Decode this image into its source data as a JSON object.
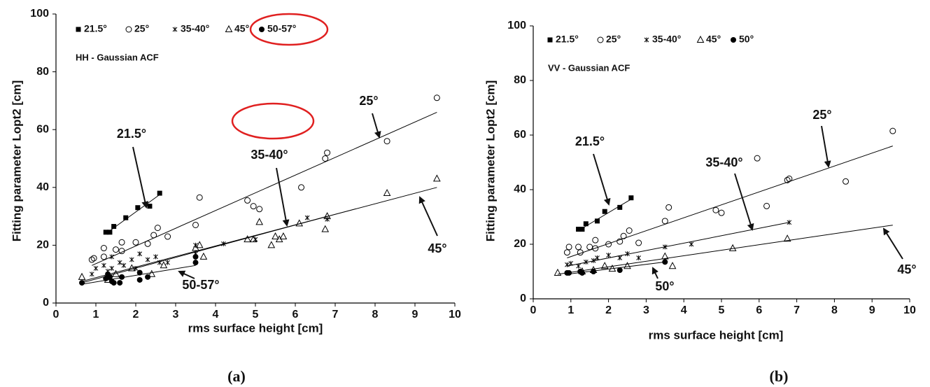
{
  "chart_data": [
    {
      "type": "scatter",
      "caption": "(a)",
      "annotation": "HH - Gaussian ACF",
      "xlabel": "rms surface height [cm]",
      "ylabel": "Fitting parameter Lopt2 [cm]",
      "xlim": [
        0,
        10
      ],
      "ylim": [
        0,
        100
      ],
      "xticks": [
        0,
        1,
        2,
        3,
        4,
        5,
        6,
        7,
        8,
        9,
        10
      ],
      "yticks": [
        0,
        20,
        40,
        60,
        80,
        100
      ],
      "arrow_labels": [
        "21.5°",
        "25°",
        "35-40°",
        "45°",
        "50-57°"
      ],
      "series": [
        {
          "name": "21.5°",
          "marker": "square",
          "color": "#000000",
          "x": [
            1.25,
            1.35,
            1.45,
            1.75,
            2.05,
            2.35,
            2.6
          ],
          "y": [
            24.5,
            24.5,
            26.5,
            29.5,
            33,
            33.5,
            38
          ],
          "trendline": {
            "x": [
              1.25,
              2.6
            ],
            "y": [
              24,
              37.5
            ]
          }
        },
        {
          "name": "25°",
          "marker": "circle",
          "color": "#000000",
          "x": [
            0.9,
            0.95,
            1.2,
            1.2,
            1.5,
            1.65,
            1.65,
            2,
            2.3,
            2.45,
            2.55,
            2.8,
            3.5,
            3.6,
            4.8,
            4.95,
            5.1,
            6.15,
            6.75,
            6.8,
            8.3,
            9.55
          ],
          "y": [
            15,
            15.5,
            16,
            19,
            18.5,
            18,
            21,
            21,
            20.5,
            23.5,
            26,
            23,
            27,
            36.5,
            35.5,
            33.5,
            32.5,
            40,
            50,
            52,
            56,
            71
          ],
          "trendline": {
            "x": [
              0.9,
              9.55
            ],
            "y": [
              13,
              66
            ]
          }
        },
        {
          "name": "35-40°",
          "marker": "star",
          "color": "#000000",
          "x": [
            0.9,
            1,
            1.2,
            1.3,
            1.4,
            1.4,
            1.6,
            1.7,
            1.9,
            2,
            2.1,
            2.3,
            2.5,
            2.6,
            2.8,
            3.5,
            3.5,
            4.2,
            5,
            6.3,
            6.8
          ],
          "y": [
            10,
            12,
            13,
            11,
            12,
            16,
            14,
            13,
            15,
            12,
            17,
            15,
            16,
            14,
            14,
            20,
            17,
            20.5,
            22,
            29.5,
            29
          ],
          "trendline": {
            "x": [
              0.65,
              6.8
            ],
            "y": [
              7,
              30
            ]
          }
        },
        {
          "name": "45°",
          "marker": "triangle",
          "color": "#000000",
          "x": [
            0.65,
            1.3,
            1.5,
            1.9,
            2.4,
            2.7,
            3.5,
            3.6,
            3.7,
            4.8,
            4.95,
            5.1,
            5.4,
            5.5,
            5.6,
            5.7,
            6.1,
            6.75,
            6.8,
            8.3,
            9.55
          ],
          "y": [
            9,
            8,
            10,
            12,
            10,
            13,
            19,
            20,
            16,
            22,
            22,
            28,
            20,
            23,
            22,
            23,
            27.5,
            25.5,
            30,
            38,
            43
          ],
          "trendline": {
            "x": [
              0.65,
              9.55
            ],
            "y": [
              7.5,
              40
            ]
          }
        },
        {
          "name": "50-57°",
          "marker": "dot",
          "color": "#000000",
          "x": [
            0.65,
            1.25,
            1.3,
            1.35,
            1.4,
            1.45,
            1.6,
            1.65,
            2.1,
            2.1,
            2.3,
            3.5,
            3.5
          ],
          "y": [
            7,
            8.5,
            10,
            9,
            7.5,
            7,
            7,
            9,
            8,
            10.5,
            9,
            14,
            16
          ],
          "trendline": {
            "x": [
              0.65,
              3.5
            ],
            "y": [
              6.5,
              13
            ]
          }
        }
      ]
    },
    {
      "type": "scatter",
      "caption": "(b)",
      "annotation": "VV - Gaussian ACF",
      "xlabel": "rms surface height [cm]",
      "ylabel": "Fitting parameter Lopt2 [cm]",
      "xlim": [
        0,
        10
      ],
      "ylim": [
        0,
        100
      ],
      "xticks": [
        0,
        1,
        2,
        3,
        4,
        5,
        6,
        7,
        8,
        9,
        10
      ],
      "yticks": [
        0,
        20,
        40,
        60,
        80,
        100
      ],
      "arrow_labels": [
        "21.5°",
        "25°",
        "35-40°",
        "45°",
        "50°"
      ],
      "series": [
        {
          "name": "21.5°",
          "marker": "square",
          "color": "#000000",
          "x": [
            1.2,
            1.3,
            1.4,
            1.7,
            1.9,
            2.3,
            2.6
          ],
          "y": [
            25.5,
            25.5,
            27.5,
            28.5,
            32,
            33.5,
            37
          ],
          "trendline": {
            "x": [
              1.2,
              2.6
            ],
            "y": [
              25,
              36.5
            ]
          }
        },
        {
          "name": "25°",
          "marker": "circle",
          "color": "#000000",
          "x": [
            0.9,
            0.95,
            1.2,
            1.25,
            1.5,
            1.65,
            1.65,
            2,
            2.3,
            2.4,
            2.55,
            2.8,
            3.5,
            3.6,
            4.85,
            5,
            5.95,
            6.2,
            6.75,
            6.8,
            8.3,
            9.55
          ],
          "y": [
            17,
            19,
            19,
            17,
            19,
            21.5,
            18.5,
            20,
            21,
            23,
            25,
            20.5,
            28.5,
            33.5,
            32.5,
            31.5,
            51.5,
            34,
            43.5,
            44,
            43,
            61.5
          ],
          "trendline": {
            "x": [
              0.9,
              9.55
            ],
            "y": [
              15,
              56
            ]
          }
        },
        {
          "name": "35-40°",
          "marker": "star",
          "color": "#000000",
          "x": [
            0.9,
            1,
            1.2,
            1.4,
            1.6,
            1.7,
            2,
            2.3,
            2.5,
            2.8,
            3.5,
            4.2,
            6.8
          ],
          "y": [
            12.5,
            13,
            12,
            13.5,
            14,
            15,
            16,
            15,
            16.5,
            15,
            19,
            20,
            28
          ],
          "trendline": {
            "x": [
              0.9,
              6.8
            ],
            "y": [
              12,
              28
            ]
          }
        },
        {
          "name": "45°",
          "marker": "triangle",
          "color": "#000000",
          "x": [
            0.65,
            1.3,
            1.6,
            1.9,
            2.1,
            2.5,
            3.5,
            3.7,
            5.3,
            6.75
          ],
          "y": [
            9.5,
            10,
            10.5,
            12,
            11,
            12,
            15.5,
            12,
            18.5,
            22
          ],
          "trendline": {
            "x": [
              0.65,
              9.55
            ],
            "y": [
              9,
              27
            ]
          }
        },
        {
          "name": "50°",
          "marker": "dot",
          "color": "#000000",
          "x": [
            0.9,
            0.95,
            1.25,
            1.3,
            1.6,
            2.3,
            3.5
          ],
          "y": [
            9.5,
            9.5,
            10,
            9.5,
            10,
            10.5,
            13.5
          ],
          "trendline": {
            "x": [
              0.9,
              3.5
            ],
            "y": [
              9,
              13.5
            ]
          }
        }
      ]
    }
  ]
}
